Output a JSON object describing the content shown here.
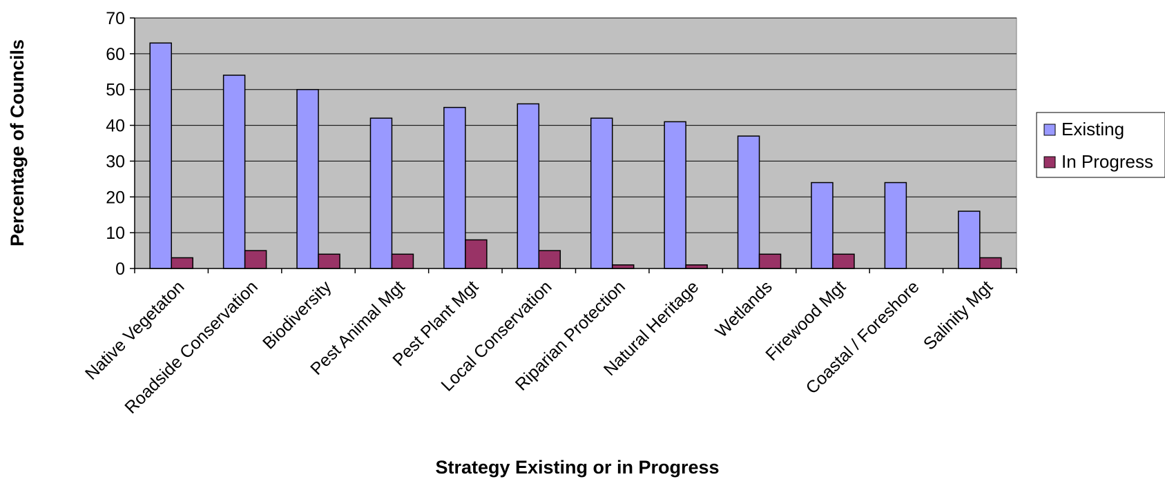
{
  "chart_data": {
    "type": "bar",
    "title": "",
    "xlabel": "Strategy Existing or in Progress",
    "ylabel": "Percentage of Councils",
    "ylim": [
      0,
      70
    ],
    "yticks": [
      0,
      10,
      20,
      30,
      40,
      50,
      60,
      70
    ],
    "grid": true,
    "legend_position": "right",
    "plot_background": "#c0c0c0",
    "categories": [
      "Native Vegetaton",
      "Roadside Conservation",
      "Biodiversity",
      "Pest Animal Mgt",
      "Pest Plant Mgt",
      "Local Conservation",
      "Riparian Protection",
      "Natural Heritage",
      "Wetlands",
      "Firewood Mgt",
      "Coastal / Foreshore",
      "Salinity Mgt"
    ],
    "series": [
      {
        "name": "Existing",
        "color": "#9999ff",
        "values": [
          63,
          54,
          50,
          42,
          45,
          46,
          42,
          41,
          37,
          24,
          24,
          16
        ]
      },
      {
        "name": "In Progress",
        "color": "#993366",
        "values": [
          3,
          5,
          4,
          4,
          8,
          5,
          1,
          1,
          4,
          4,
          0,
          3
        ]
      }
    ]
  }
}
